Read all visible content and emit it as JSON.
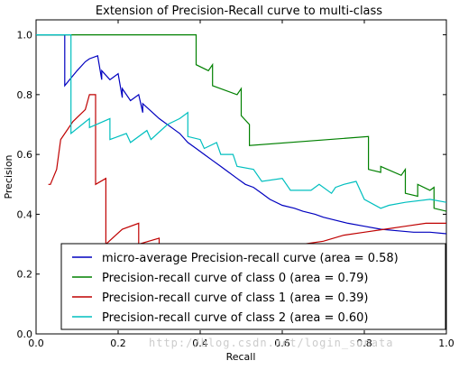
{
  "chart_data": {
    "type": "line",
    "title": "Extension of Precision-Recall curve to multi-class",
    "xlabel": "Recall",
    "ylabel": "Precision",
    "xlim": [
      0.0,
      1.0
    ],
    "ylim": [
      0.0,
      1.05
    ],
    "xticks": [
      "0.0",
      "0.2",
      "0.4",
      "0.6",
      "0.8",
      "1.0"
    ],
    "yticks": [
      "0.0",
      "0.2",
      "0.4",
      "0.6",
      "0.8",
      "1.0"
    ],
    "grid": false,
    "legend_position": "bottom-right",
    "series": [
      {
        "name": "micro-average Precision-recall curve (area = 0.58)",
        "color": "#0000bf",
        "x": [
          0.0,
          0.07,
          0.07,
          0.1,
          0.12,
          0.13,
          0.15,
          0.16,
          0.16,
          0.18,
          0.2,
          0.21,
          0.21,
          0.23,
          0.25,
          0.26,
          0.26,
          0.3,
          0.33,
          0.35,
          0.37,
          0.39,
          0.41,
          0.43,
          0.45,
          0.47,
          0.49,
          0.51,
          0.53,
          0.55,
          0.57,
          0.6,
          0.63,
          0.65,
          0.68,
          0.7,
          0.73,
          0.76,
          0.8,
          0.84,
          0.88,
          0.92,
          0.96,
          1.0
        ],
        "y": [
          1.0,
          1.0,
          0.83,
          0.88,
          0.91,
          0.92,
          0.93,
          0.85,
          0.88,
          0.85,
          0.87,
          0.79,
          0.82,
          0.78,
          0.8,
          0.74,
          0.77,
          0.72,
          0.69,
          0.67,
          0.64,
          0.62,
          0.6,
          0.58,
          0.56,
          0.54,
          0.52,
          0.5,
          0.49,
          0.47,
          0.45,
          0.43,
          0.42,
          0.41,
          0.4,
          0.39,
          0.38,
          0.37,
          0.36,
          0.35,
          0.345,
          0.34,
          0.34,
          0.335
        ]
      },
      {
        "name": "Precision-recall curve of class 0 (area = 0.79)",
        "color": "#008000",
        "x": [
          0.0,
          0.39,
          0.39,
          0.42,
          0.43,
          0.43,
          0.49,
          0.5,
          0.5,
          0.52,
          0.52,
          0.81,
          0.81,
          0.84,
          0.84,
          0.89,
          0.9,
          0.9,
          0.93,
          0.93,
          0.96,
          0.97,
          0.97,
          1.0
        ],
        "y": [
          1.0,
          1.0,
          0.9,
          0.88,
          0.9,
          0.83,
          0.8,
          0.82,
          0.73,
          0.7,
          0.63,
          0.66,
          0.55,
          0.54,
          0.56,
          0.53,
          0.55,
          0.47,
          0.46,
          0.5,
          0.48,
          0.49,
          0.42,
          0.41
        ]
      },
      {
        "name": "Precision-recall curve of class 1 (area = 0.39)",
        "color": "#bf0000",
        "x": [
          0.03,
          0.035,
          0.05,
          0.06,
          0.09,
          0.12,
          0.13,
          0.145,
          0.145,
          0.17,
          0.17,
          0.21,
          0.25,
          0.25,
          0.3,
          0.3,
          0.4,
          0.5,
          0.5,
          0.6,
          0.7,
          0.75,
          0.8,
          0.85,
          0.9,
          0.95,
          1.0
        ],
        "y": [
          0.5,
          0.5,
          0.55,
          0.65,
          0.71,
          0.75,
          0.8,
          0.8,
          0.5,
          0.52,
          0.3,
          0.35,
          0.37,
          0.3,
          0.32,
          0.26,
          0.25,
          0.26,
          0.27,
          0.29,
          0.31,
          0.33,
          0.34,
          0.35,
          0.36,
          0.37,
          0.37
        ]
      },
      {
        "name": "Precision-recall curve of class 2 (area = 0.60)",
        "color": "#00bfbf",
        "x": [
          0.0,
          0.085,
          0.085,
          0.13,
          0.13,
          0.18,
          0.18,
          0.22,
          0.23,
          0.27,
          0.28,
          0.32,
          0.35,
          0.37,
          0.37,
          0.4,
          0.41,
          0.44,
          0.45,
          0.48,
          0.49,
          0.53,
          0.55,
          0.6,
          0.62,
          0.67,
          0.69,
          0.72,
          0.73,
          0.75,
          0.78,
          0.8,
          0.84,
          0.86,
          0.9,
          0.96,
          1.0
        ],
        "y": [
          1.0,
          1.0,
          0.67,
          0.72,
          0.69,
          0.72,
          0.65,
          0.67,
          0.64,
          0.68,
          0.65,
          0.7,
          0.72,
          0.74,
          0.66,
          0.65,
          0.62,
          0.64,
          0.6,
          0.6,
          0.56,
          0.55,
          0.51,
          0.52,
          0.48,
          0.48,
          0.5,
          0.47,
          0.49,
          0.5,
          0.51,
          0.45,
          0.42,
          0.43,
          0.44,
          0.45,
          0.44
        ]
      }
    ]
  },
  "watermark": "http://blog.csdn.net/login_sonata"
}
